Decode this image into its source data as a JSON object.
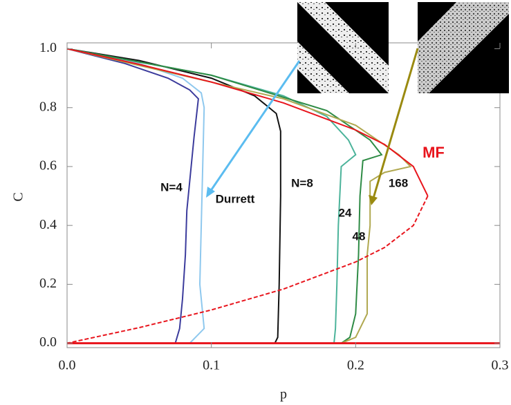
{
  "chart_data": {
    "type": "line",
    "xlabel": "p",
    "ylabel": "C",
    "xlim": [
      0,
      0.3
    ],
    "ylim": [
      -0.015,
      1.02
    ],
    "xticks": [
      {
        "value": 0,
        "label": "0.0"
      },
      {
        "value": 0.1,
        "label": "0.1"
      },
      {
        "value": 0.2,
        "label": "0.2"
      },
      {
        "value": 0.3,
        "label": "0.3"
      }
    ],
    "yticks": [
      {
        "value": 0,
        "label": "0.0"
      },
      {
        "value": 0.2,
        "label": "0.2"
      },
      {
        "value": 0.4,
        "label": "0.4"
      },
      {
        "value": 0.6,
        "label": "0.6"
      },
      {
        "value": 0.8,
        "label": "0.8"
      },
      {
        "value": 1,
        "label": "1.0"
      }
    ],
    "series": [
      {
        "name": "N=4",
        "color": "#3b3b9c",
        "x": [
          0,
          0.04,
          0.07,
          0.085,
          0.091,
          0.088,
          0.085,
          0.083,
          0.082,
          0.08,
          0.078,
          0.075
        ],
        "values": [
          1,
          0.95,
          0.9,
          0.86,
          0.83,
          0.7,
          0.55,
          0.45,
          0.3,
          0.15,
          0.05,
          0
        ]
      },
      {
        "name": "Durrett",
        "color": "#8ec8ee",
        "x": [
          0,
          0.05,
          0.08,
          0.093,
          0.095,
          0.094,
          0.093,
          0.092,
          0.094,
          0.095,
          0.085,
          0.072
        ],
        "values": [
          1,
          0.95,
          0.9,
          0.85,
          0.8,
          0.6,
          0.4,
          0.2,
          0.1,
          0.05,
          0,
          0
        ]
      },
      {
        "name": "N=8",
        "color": "#111111",
        "x": [
          0,
          0.05,
          0.1,
          0.13,
          0.145,
          0.148,
          0.148,
          0.147,
          0.146,
          0.144
        ],
        "values": [
          1,
          0.96,
          0.9,
          0.84,
          0.78,
          0.72,
          0.5,
          0.2,
          0.02,
          0
        ]
      },
      {
        "name": "24",
        "color": "#4bb39a",
        "x": [
          0,
          0.1,
          0.15,
          0.18,
          0.195,
          0.2,
          0.19,
          0.188,
          0.187,
          0.186,
          0.185
        ],
        "values": [
          1,
          0.91,
          0.84,
          0.77,
          0.69,
          0.64,
          0.6,
          0.4,
          0.2,
          0.05,
          0
        ]
      },
      {
        "name": "48",
        "color": "#2e8b45",
        "x": [
          0,
          0.1,
          0.18,
          0.21,
          0.218,
          0.205,
          0.203,
          0.202,
          0.2,
          0.196,
          0.19
        ],
        "values": [
          1,
          0.91,
          0.79,
          0.69,
          0.64,
          0.62,
          0.5,
          0.3,
          0.1,
          0.02,
          0
        ]
      },
      {
        "name": "168",
        "color": "#b0a850",
        "x": [
          0,
          0.15,
          0.2,
          0.23,
          0.238,
          0.22,
          0.21,
          0.21,
          0.208,
          0.208,
          0.2,
          0.19
        ],
        "values": [
          1,
          0.83,
          0.74,
          0.64,
          0.6,
          0.58,
          0.55,
          0.4,
          0.3,
          0.1,
          0.02,
          0
        ]
      },
      {
        "name": "MF",
        "color": "#e8141c",
        "x": [
          0,
          0.05,
          0.1,
          0.15,
          0.2,
          0.22,
          0.24,
          0.25
        ],
        "values": [
          1,
          0.947,
          0.887,
          0.816,
          0.724,
          0.675,
          0.6,
          0.5
        ]
      },
      {
        "color": "#e8141c",
        "dash": true,
        "x": [
          0.25,
          0.24,
          0.22,
          0.2,
          0.15,
          0.1,
          0.05,
          0
        ],
        "values": [
          0.5,
          0.4,
          0.325,
          0.276,
          0.184,
          0.113,
          0.053,
          0
        ]
      },
      {
        "color": "#e8141c",
        "x": [
          0,
          0.3
        ],
        "values": [
          0,
          0
        ]
      }
    ]
  }
}
